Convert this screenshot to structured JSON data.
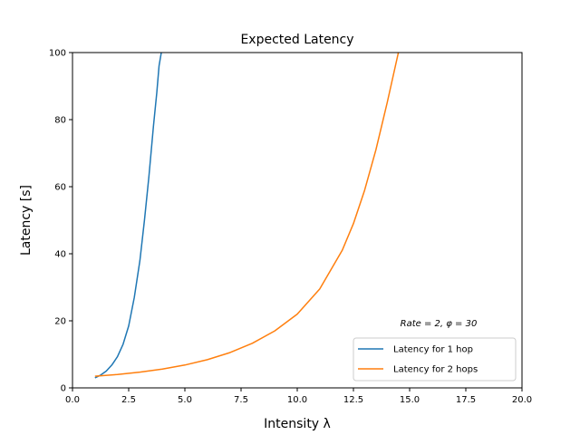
{
  "chart_data": {
    "type": "line",
    "title": "Expected Latency",
    "xlabel": "Intensity λ",
    "ylabel": "Latency [s]",
    "xlim": [
      0,
      20
    ],
    "ylim": [
      0,
      100
    ],
    "xticks": [
      "0.0",
      "2.5",
      "5.0",
      "7.5",
      "10.0",
      "12.5",
      "15.0",
      "17.5",
      "20.0"
    ],
    "yticks": [
      "0",
      "20",
      "40",
      "60",
      "80",
      "100"
    ],
    "annotation": "Rate = 2, φ = 30",
    "legend_position": "lower-right",
    "grid": false,
    "series": [
      {
        "name": "Latency for 1 hop",
        "color": "#1f77b4",
        "x": [
          1.0,
          1.25,
          1.5,
          1.75,
          2.0,
          2.25,
          2.5,
          2.75,
          3.0,
          3.2,
          3.4,
          3.6,
          3.75,
          3.85,
          3.95
        ],
        "y": [
          3,
          3.8,
          5,
          6.8,
          9.3,
          13,
          18.5,
          27,
          38,
          50,
          63,
          78,
          88,
          96,
          100
        ]
      },
      {
        "name": "Latency for 2 hops",
        "color": "#ff7f0e",
        "x": [
          1.0,
          2.0,
          3.0,
          4.0,
          5.0,
          6.0,
          7.0,
          8.0,
          9.0,
          10.0,
          11.0,
          12.0,
          12.5,
          13.0,
          13.5,
          14.0,
          14.5
        ],
        "y": [
          3.5,
          4.0,
          4.7,
          5.6,
          6.8,
          8.4,
          10.5,
          13.3,
          17.0,
          22.0,
          29.5,
          41.0,
          49.0,
          59.0,
          71.0,
          85.0,
          100.0
        ]
      }
    ]
  }
}
